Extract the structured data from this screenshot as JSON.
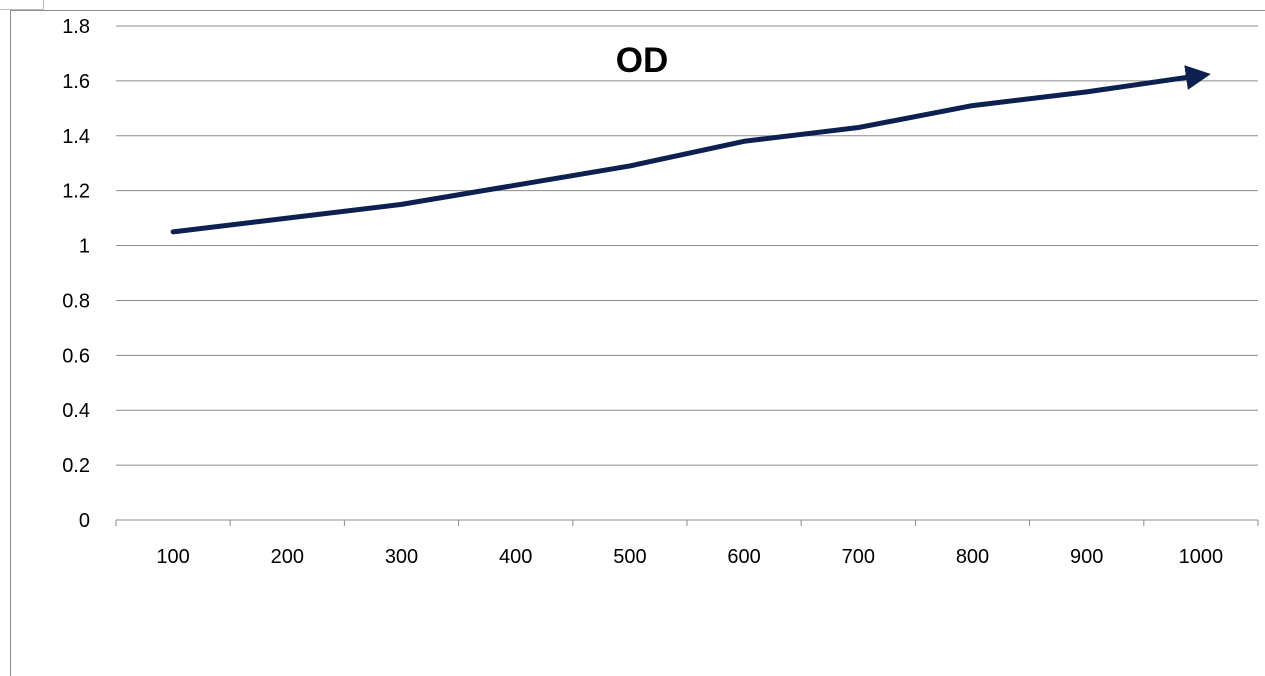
{
  "chart_data": {
    "type": "line",
    "title": "OD",
    "xlabel": "",
    "ylabel": "",
    "categories": [
      "100",
      "200",
      "300",
      "400",
      "500",
      "600",
      "700",
      "800",
      "900",
      "1000"
    ],
    "series": [
      {
        "values": [
          1.05,
          1.1,
          1.15,
          1.22,
          1.29,
          1.38,
          1.43,
          1.51,
          1.56,
          1.62
        ],
        "color": "#0d2150",
        "end_marker": "arrow"
      }
    ],
    "y_ticks": [
      "0",
      "0.2",
      "0.4",
      "0.6",
      "0.8",
      "1",
      "1.2",
      "1.4",
      "1.6",
      "1.8"
    ],
    "ylim": [
      0,
      1.8
    ],
    "grid": "horizontal",
    "legend": "none"
  },
  "colors": {
    "gridline": "#8c8c8c",
    "axis": "#8c8c8c",
    "series": "#0d2150"
  }
}
